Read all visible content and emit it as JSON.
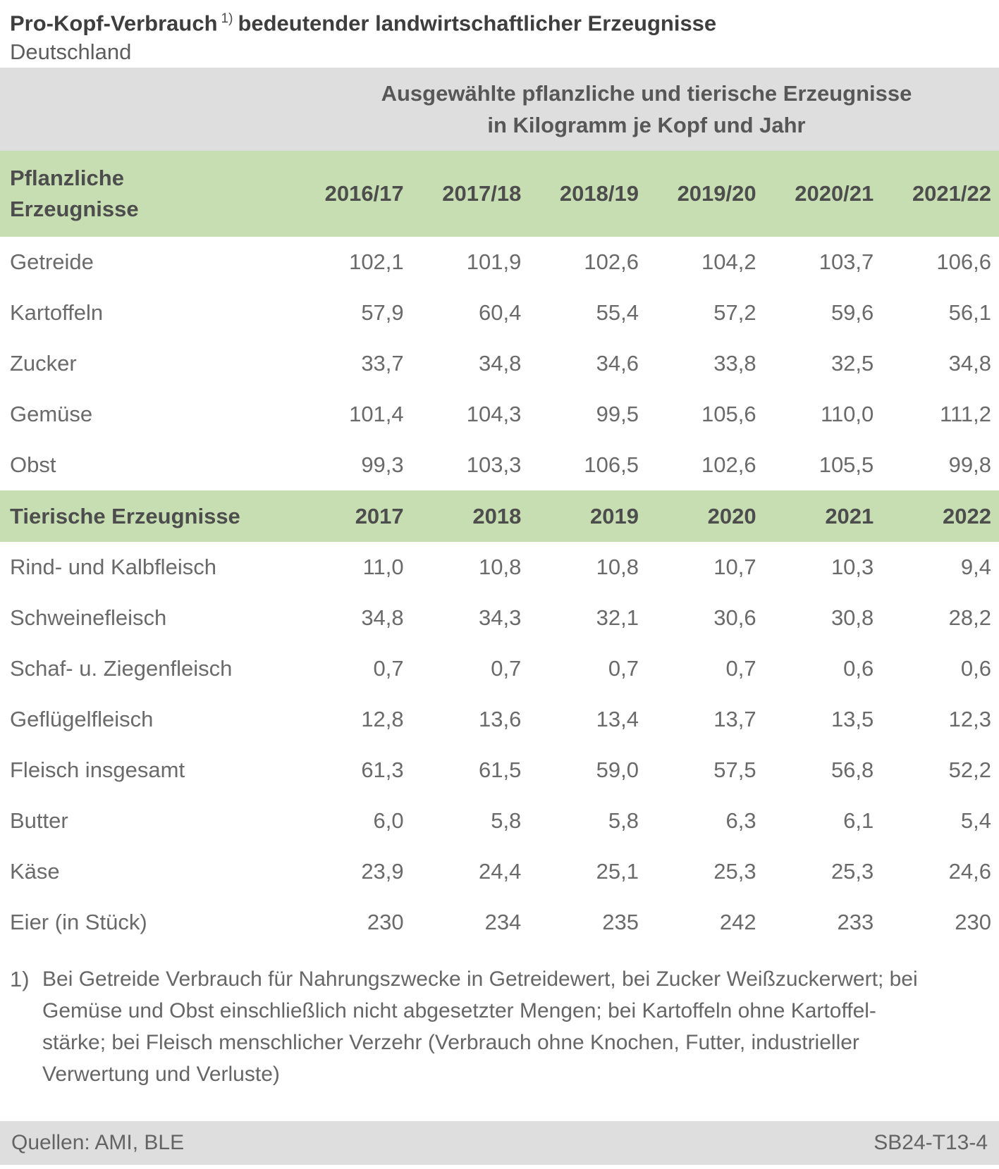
{
  "title": {
    "part1": "Pro-Kopf-Verbrauch",
    "sup": "1)",
    "part2": "bedeutender landwirtschaftlicher Erzeugnisse",
    "subtitle": "Deutschland"
  },
  "chart_data": {
    "type": "table",
    "title": "Pro-Kopf-Verbrauch bedeutender landwirtschaftlicher Erzeugnisse",
    "region": "Deutschland",
    "unit_header": [
      "Ausgewählte pflanzliche und tierische Erzeugnisse",
      "in Kilogramm je Kopf und Jahr"
    ],
    "sections": [
      {
        "label": "Pflanzliche Erzeugnisse",
        "years": [
          "2016/17",
          "2017/18",
          "2018/19",
          "2019/20",
          "2020/21",
          "2021/22"
        ],
        "rows": [
          {
            "label": "Getreide",
            "values": [
              "102,1",
              "101,9",
              "102,6",
              "104,2",
              "103,7",
              "106,6"
            ]
          },
          {
            "label": "Kartoffeln",
            "values": [
              "57,9",
              "60,4",
              "55,4",
              "57,2",
              "59,6",
              "56,1"
            ]
          },
          {
            "label": "Zucker",
            "values": [
              "33,7",
              "34,8",
              "34,6",
              "33,8",
              "32,5",
              "34,8"
            ]
          },
          {
            "label": "Gemüse",
            "values": [
              "101,4",
              "104,3",
              "99,5",
              "105,6",
              "110,0",
              "111,2"
            ]
          },
          {
            "label": "Obst",
            "values": [
              "99,3",
              "103,3",
              "106,5",
              "102,6",
              "105,5",
              "99,8"
            ]
          }
        ]
      },
      {
        "label": "Tierische Erzeugnisse",
        "years": [
          "2017",
          "2018",
          "2019",
          "2020",
          "2021",
          "2022"
        ],
        "rows": [
          {
            "label": "Rind- und Kalbfleisch",
            "values": [
              "11,0",
              "10,8",
              "10,8",
              "10,7",
              "10,3",
              "9,4"
            ]
          },
          {
            "label": "Schweinefleisch",
            "values": [
              "34,8",
              "34,3",
              "32,1",
              "30,6",
              "30,8",
              "28,2"
            ]
          },
          {
            "label": "Schaf- u. Ziegenfleisch",
            "values": [
              "0,7",
              "0,7",
              "0,7",
              "0,7",
              "0,6",
              "0,6"
            ]
          },
          {
            "label": "Geflügelfleisch",
            "values": [
              "12,8",
              "13,6",
              "13,4",
              "13,7",
              "13,5",
              "12,3"
            ]
          },
          {
            "label": "Fleisch insgesamt",
            "values": [
              "61,3",
              "61,5",
              "59,0",
              "57,5",
              "56,8",
              "52,2"
            ]
          },
          {
            "label": "Butter",
            "values": [
              "6,0",
              "5,8",
              "5,8",
              "6,3",
              "6,1",
              "5,4"
            ]
          },
          {
            "label": "Käse",
            "values": [
              "23,9",
              "24,4",
              "25,1",
              "25,3",
              "25,3",
              "24,6"
            ]
          },
          {
            "label": "Eier (in Stück)",
            "values": [
              "230",
              "234",
              "235",
              "242",
              "233",
              "230"
            ]
          }
        ]
      }
    ]
  },
  "footnote": {
    "marker": "1)",
    "lines": [
      "Bei Getreide Verbrauch für Nahrungszwecke in Getreidewert, bei Zucker Weißzuckerwert; bei",
      "Gemüse und Obst einschließlich nicht abgesetzter Mengen; bei Kartoffeln ohne Kartoffel-",
      "stärke; bei Fleisch menschlicher Verzehr (Verbrauch ohne Knochen, Futter, industrieller",
      "Verwertung und Verluste)"
    ]
  },
  "footer": {
    "sources": "Quellen: AMI, BLE",
    "code": "SB24-T13-4"
  },
  "colors": {
    "band_gray": "#dedede",
    "band_green": "#c7deb2",
    "title_text": "#3e3e3e",
    "body_text": "#6a6a6a",
    "header_text": "#4d4d4d"
  }
}
